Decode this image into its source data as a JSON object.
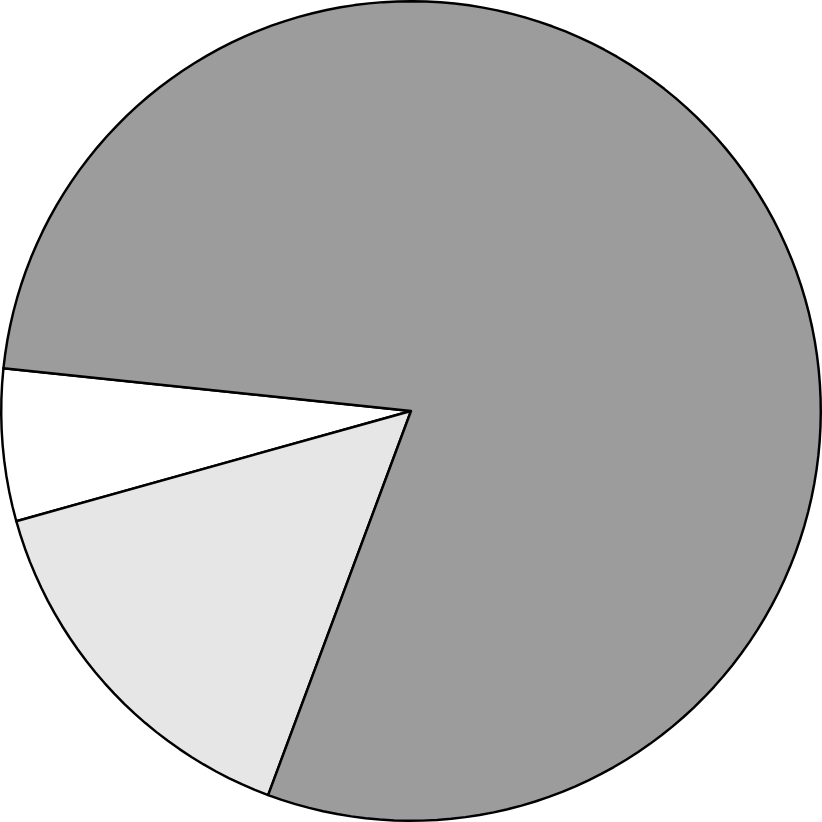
{
  "chart_data": {
    "type": "pie",
    "categories": [
      null,
      null,
      null
    ],
    "values": [
      6,
      15,
      79
    ],
    "colors": [
      "#ffffff",
      "#e6e6e6",
      "#9c9c9c"
    ]
  }
}
